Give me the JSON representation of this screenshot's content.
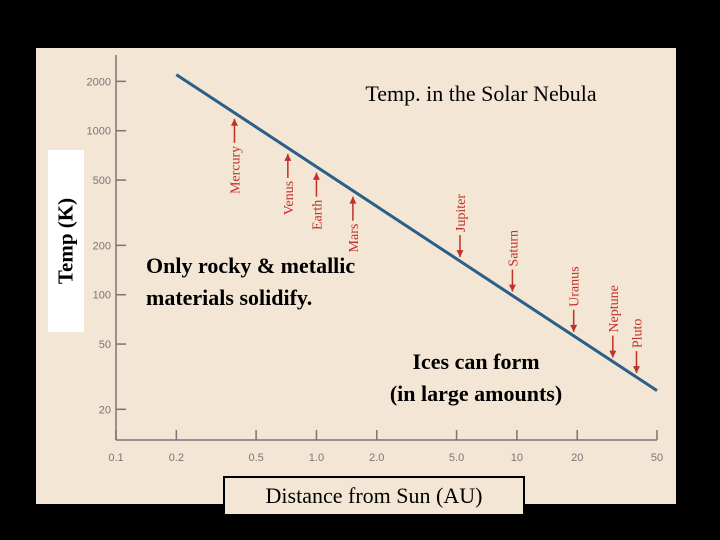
{
  "chart_data": {
    "type": "line",
    "title": "Temp. in the Solar Nebula",
    "xlabel": "Distance from Sun (AU)",
    "ylabel": "Temp (K)",
    "x_scale": "log",
    "y_scale": "log",
    "xlim": [
      0.1,
      50
    ],
    "ylim": [
      13,
      2700
    ],
    "x_ticks": [
      {
        "value": 0.1,
        "label": "0.1"
      },
      {
        "value": 0.2,
        "label": "0.2"
      },
      {
        "value": 0.5,
        "label": "0.5"
      },
      {
        "value": 1,
        "label": "1.0"
      },
      {
        "value": 2,
        "label": "2.0"
      },
      {
        "value": 5,
        "label": "5.0"
      },
      {
        "value": 10,
        "label": "10"
      },
      {
        "value": 20,
        "label": "20"
      },
      {
        "value": 50,
        "label": "50"
      }
    ],
    "y_ticks": [
      {
        "value": 2000,
        "label": "2000"
      },
      {
        "value": 1000,
        "label": "1000"
      },
      {
        "value": 500,
        "label": "500"
      },
      {
        "value": 200,
        "label": "200"
      },
      {
        "value": 100,
        "label": "100"
      },
      {
        "value": 50,
        "label": "50"
      },
      {
        "value": 20,
        "label": "20"
      }
    ],
    "series": [
      {
        "points": [
          {
            "x": 0.2,
            "y": 2200
          },
          {
            "x": 50,
            "y": 26
          }
        ]
      }
    ],
    "planets": [
      {
        "label": "Mercury",
        "x": 0.39
      },
      {
        "label": "Venus",
        "x": 0.72
      },
      {
        "label": "Earth",
        "x": 1.0
      },
      {
        "label": "Mars",
        "x": 1.52
      },
      {
        "label": "Jupiter",
        "x": 5.2
      },
      {
        "label": "Saturn",
        "x": 9.5
      },
      {
        "label": "Uranus",
        "x": 19.2
      },
      {
        "label": "Neptune",
        "x": 30.1
      },
      {
        "label": "Pluto",
        "x": 39.5
      }
    ],
    "annotations": [
      {
        "lines": [
          "Only rocky & metallic",
          "materials solidify."
        ]
      },
      {
        "lines": [
          "Ices can form",
          "(in large amounts)"
        ]
      }
    ],
    "grid": false,
    "colors": {
      "line": "#2b5f8a",
      "text": "#000000",
      "tick": "#777777",
      "planet": "#c03028",
      "background": "#f3e6d4"
    }
  }
}
